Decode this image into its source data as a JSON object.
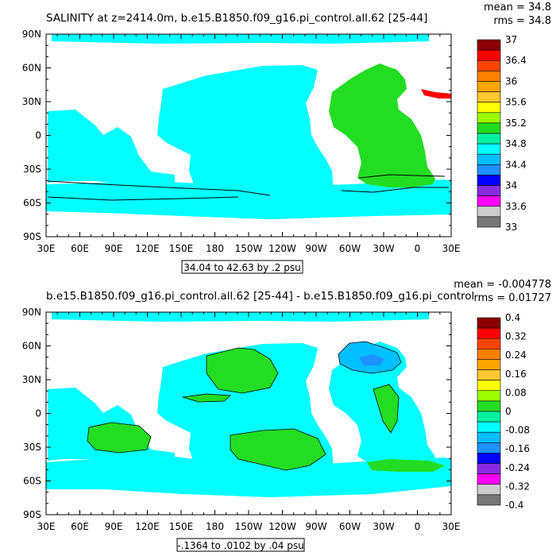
{
  "panels": [
    {
      "title": "SALINITY at z=2414.0m, b.e15.B1850.f09_g16.pi_control.all.62 [25-44]",
      "stats": {
        "mean": "mean = 34.8",
        "rms": "rms = 34.8"
      },
      "range_label": "34.04 to 42.63 by .2 psu",
      "x_ticks": [
        "30E",
        "60E",
        "90E",
        "120E",
        "150E",
        "180",
        "150W",
        "120W",
        "90W",
        "60W",
        "30W",
        "0",
        "30E"
      ],
      "y_ticks": [
        "90N",
        "60N",
        "30N",
        "0",
        "30S",
        "60S",
        "90S"
      ],
      "colorbar": {
        "labels": [
          "37",
          "36.4",
          "36",
          "35.6",
          "35.2",
          "34.8",
          "34.4",
          "34",
          "33.6",
          "33"
        ],
        "colors": [
          "#8b0000",
          "#ff0000",
          "#ff4500",
          "#ff7f00",
          "#ffa500",
          "#ffc830",
          "#ffff00",
          "#9aff00",
          "#22dd22",
          "#00f0a0",
          "#00ffff",
          "#00bfff",
          "#1e90ff",
          "#0000ff",
          "#8a2be2",
          "#ff00ff",
          "#cccccc",
          "#777777"
        ]
      }
    },
    {
      "title": "b.e15.B1850.f09_g16.pi_control.all.62 [25-44] - b.e15.B1850.f09_g16.pi_control",
      "stats": {
        "mean": "mean = -0.004778",
        "rms": "rms = 0.01727"
      },
      "range_label": "-.1364 to .0102 by .04 psu",
      "x_ticks": [
        "30E",
        "60E",
        "90E",
        "120E",
        "150E",
        "180",
        "150W",
        "120W",
        "90W",
        "60W",
        "30W",
        "0",
        "30E"
      ],
      "y_ticks": [
        "90N",
        "60N",
        "30N",
        "0",
        "30S",
        "60S",
        "90S"
      ],
      "colorbar": {
        "labels": [
          "0.4",
          "0.32",
          "0.24",
          "0.16",
          "0.08",
          "0",
          "-0.08",
          "-0.16",
          "-0.24",
          "-0.32",
          "-0.4"
        ],
        "colors": [
          "#8b0000",
          "#ff0000",
          "#ff4500",
          "#ff7f00",
          "#ffa500",
          "#ffc830",
          "#ffff00",
          "#9aff00",
          "#22dd22",
          "#00f0a0",
          "#00ffff",
          "#00bfff",
          "#1e90ff",
          "#0000ff",
          "#8a2be2",
          "#ff00ff",
          "#cccccc",
          "#777777"
        ]
      }
    }
  ]
}
